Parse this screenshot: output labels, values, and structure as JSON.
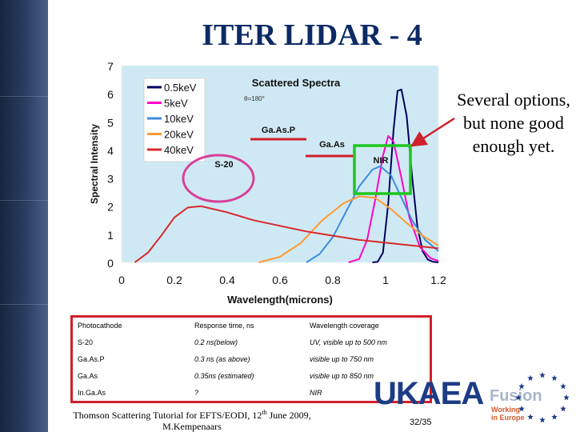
{
  "slide": {
    "title": "ITER LIDAR - 4",
    "side_note": "Several options, but none good enough yet.",
    "footer_line1": "Thomson Scattering Tutorial for EFTS/EODI, 12",
    "footer_sup": "th",
    "footer_line1_end": " June 2009,",
    "footer_line2": "M.Kempenaars",
    "page": "32/35",
    "logo_text": "UKAEA",
    "logo_fusion": "Fusion",
    "logo_tag1": "Working",
    "logo_tag2": "in Europe"
  },
  "chart_data": {
    "type": "line",
    "title": "Scattered Spectra",
    "subtitle": "θ=180°",
    "xlabel": "Wavelength(microns)",
    "ylabel": "Spectral Intensity",
    "xlim": [
      0,
      1.2
    ],
    "ylim": [
      0,
      7
    ],
    "xticks": [
      "0",
      "0.2",
      "0.4",
      "0.6",
      "0.8",
      "1",
      "1.2"
    ],
    "yticks": [
      "0",
      "1",
      "2",
      "3",
      "4",
      "5",
      "6",
      "7"
    ],
    "background": "#cfe9f4",
    "legend_placement": "top-left",
    "series": [
      {
        "name": "0.5keV",
        "color": "#00005c",
        "x": [
          0.95,
          0.97,
          0.99,
          1.01,
          1.03,
          1.045,
          1.06,
          1.08,
          1.1,
          1.12,
          1.14,
          1.16,
          1.18,
          1.2
        ],
        "y": [
          0,
          0.02,
          0.35,
          2.1,
          4.7,
          6.1,
          6.15,
          5.2,
          3.1,
          1.3,
          0.4,
          0.1,
          0.02,
          0
        ]
      },
      {
        "name": "5keV",
        "color": "#ff00c8",
        "x": [
          0.86,
          0.9,
          0.93,
          0.96,
          0.99,
          1.01,
          1.03,
          1.06,
          1.09,
          1.13,
          1.17,
          1.2
        ],
        "y": [
          0,
          0.12,
          0.8,
          2.2,
          3.8,
          4.5,
          4.3,
          3.0,
          1.6,
          0.55,
          0.15,
          0.05
        ]
      },
      {
        "name": "10keV",
        "color": "#3c8cdc",
        "x": [
          0.7,
          0.75,
          0.8,
          0.85,
          0.9,
          0.95,
          0.98,
          1.02,
          1.06,
          1.1,
          1.15,
          1.2
        ],
        "y": [
          0,
          0.3,
          0.9,
          1.8,
          2.7,
          3.3,
          3.42,
          3.1,
          2.3,
          1.5,
          0.8,
          0.4
        ]
      },
      {
        "name": "20keV",
        "color": "#ff9a30",
        "x": [
          0.52,
          0.6,
          0.68,
          0.76,
          0.84,
          0.9,
          0.96,
          1.02,
          1.08,
          1.14,
          1.2
        ],
        "y": [
          0,
          0.2,
          0.7,
          1.5,
          2.1,
          2.35,
          2.3,
          1.9,
          1.4,
          0.95,
          0.6
        ]
      },
      {
        "name": "40keV",
        "color": "#d8282a",
        "x": [
          0.05,
          0.1,
          0.15,
          0.2,
          0.25,
          0.3,
          0.4,
          0.5,
          0.6,
          0.7,
          0.8,
          0.9,
          1.0,
          1.1,
          1.2
        ],
        "y": [
          0,
          0.35,
          0.95,
          1.6,
          1.95,
          2.0,
          1.78,
          1.5,
          1.3,
          1.1,
          0.95,
          0.8,
          0.7,
          0.6,
          0.5
        ]
      }
    ]
  },
  "annotations": {
    "s20": "S-20",
    "gaasp": "Ga.As.P",
    "gaas": "Ga.As",
    "nir": "NIR"
  },
  "table": {
    "headers": [
      "Photocathode",
      "Response time, ns",
      "Wavelength coverage"
    ],
    "rows": [
      [
        "S-20",
        "0.2 ns(below)",
        "UV, visible up to 500 nm"
      ],
      [
        "Ga.As.P",
        "0.3 ns (as above)",
        "visible up to 750 nm"
      ],
      [
        "Ga.As",
        "0.35ns (estimated)",
        "visible up to 850 nm"
      ],
      [
        "In.Ga.As",
        "?",
        "NIR"
      ]
    ]
  }
}
